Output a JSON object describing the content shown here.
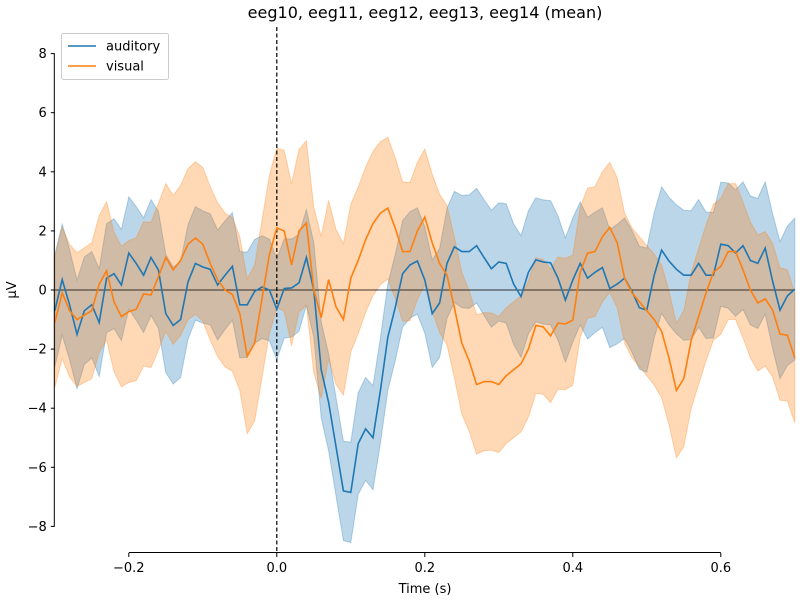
{
  "chart_data": {
    "type": "line",
    "title": "eeg10, eeg11, eeg12, eeg13, eeg14 (mean)",
    "xlabel": "Time (s)",
    "ylabel": "µV",
    "xlim": [
      -0.3,
      0.7
    ],
    "ylim": [
      -8.9,
      8.9
    ],
    "xticks": [
      -0.2,
      0.0,
      0.2,
      0.4,
      0.6
    ],
    "xtick_labels": [
      "−0.2",
      "0.0",
      "0.2",
      "0.4",
      "0.6"
    ],
    "yticks": [
      -8,
      -6,
      -4,
      -2,
      0,
      2,
      4,
      6,
      8
    ],
    "ytick_labels": [
      "−8",
      "−6",
      "−4",
      "−2",
      "0",
      "2",
      "4",
      "6",
      "8"
    ],
    "grid": false,
    "legend_position": "top-left",
    "zero_line": true,
    "stimulus_onset_marker": 0.0,
    "x_start": -0.3,
    "x_step": 0.01,
    "ci_step": 0.05,
    "series": [
      {
        "name": "auditory",
        "color": "#1f77b4",
        "values": [
          -0.7,
          0.35,
          -0.5,
          -1.5,
          -0.7,
          -0.5,
          -1.1,
          0.4,
          0.55,
          0.17,
          1.25,
          0.9,
          0.5,
          1.1,
          0.68,
          -0.8,
          -1.2,
          -1.0,
          0.27,
          0.9,
          0.78,
          0.7,
          0.17,
          0.5,
          0.8,
          -0.5,
          -0.5,
          -0.05,
          0.1,
          0.0,
          -0.65,
          0.05,
          0.07,
          0.24,
          1.1,
          0.0,
          -2.7,
          -3.8,
          -5.3,
          -6.8,
          -6.85,
          -5.2,
          -4.7,
          -5.0,
          -3.4,
          -1.6,
          -0.6,
          0.55,
          0.85,
          0.98,
          0.34,
          -0.8,
          -0.44,
          0.9,
          1.46,
          1.3,
          1.3,
          1.5,
          1.1,
          0.72,
          0.95,
          0.9,
          0.2,
          -0.22,
          0.6,
          1.02,
          0.95,
          0.92,
          0.4,
          -0.34,
          0.34,
          0.9,
          0.4,
          0.6,
          0.76,
          0.05,
          0.2,
          0.4,
          -0.05,
          -0.6,
          -0.68,
          0.5,
          1.35,
          0.98,
          0.7,
          0.5,
          0.5,
          0.9,
          0.5,
          0.5,
          1.55,
          1.5,
          1.25,
          1.5,
          1.0,
          0.9,
          1.42,
          0.3,
          -0.68,
          -0.2,
          0.03
        ],
        "ci_halfwidth": [
          1.9,
          1.8,
          1.9,
          2.0,
          1.9,
          1.8,
          1.7,
          1.6,
          1.7,
          1.8,
          1.8,
          1.9,
          2.0,
          2.1,
          2.1,
          2.0,
          2.1,
          2.2,
          2.1,
          2.2,
          2.4
        ]
      },
      {
        "name": "visual",
        "color": "#ff7f0e",
        "values": [
          -1.1,
          -0.1,
          -0.7,
          -1.0,
          -0.85,
          -0.7,
          0.2,
          0.65,
          -0.4,
          -0.9,
          -0.73,
          -0.65,
          -0.13,
          -0.17,
          0.45,
          1.1,
          0.68,
          1.0,
          1.55,
          1.76,
          1.55,
          0.9,
          0.35,
          0.0,
          -0.15,
          -0.8,
          -2.24,
          -1.8,
          -0.3,
          1.2,
          2.1,
          2.0,
          0.85,
          2.0,
          2.27,
          0.0,
          -0.93,
          0.35,
          -0.57,
          -1.0,
          0.4,
          1.0,
          1.7,
          2.25,
          2.6,
          2.77,
          2.1,
          1.3,
          1.3,
          2.0,
          2.47,
          1.6,
          0.9,
          0.5,
          -0.6,
          -1.8,
          -2.4,
          -3.2,
          -3.1,
          -3.1,
          -3.2,
          -2.9,
          -2.7,
          -2.5,
          -2.0,
          -1.2,
          -1.25,
          -1.55,
          -1.12,
          -1.15,
          -1.02,
          0.6,
          1.25,
          1.3,
          1.8,
          2.12,
          1.6,
          0.4,
          -0.1,
          -0.4,
          -0.7,
          -1.0,
          -1.4,
          -2.3,
          -3.4,
          -3.0,
          -1.7,
          -0.9,
          -0.1,
          0.6,
          0.8,
          1.3,
          1.3,
          0.68,
          0.0,
          -0.44,
          -0.3,
          -0.68,
          -1.49,
          -1.53,
          -2.3
        ],
        "ci_halfwidth": [
          2.2,
          2.3,
          2.4,
          2.5,
          2.6,
          2.6,
          2.7,
          2.8,
          2.5,
          2.4,
          2.3,
          2.4,
          2.3,
          2.3,
          2.2,
          2.2,
          2.2,
          2.3,
          2.3,
          2.3,
          2.2
        ]
      }
    ]
  }
}
